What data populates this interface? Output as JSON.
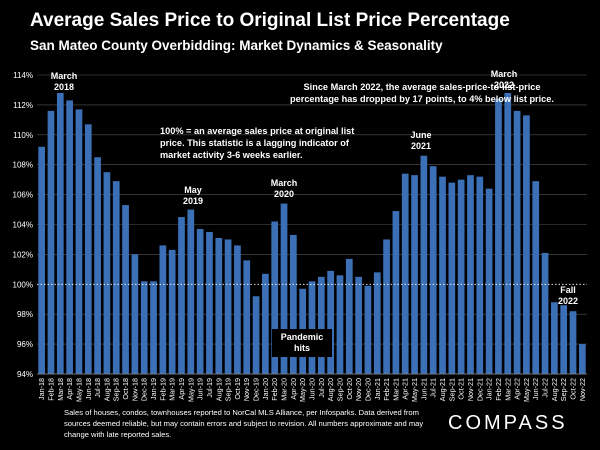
{
  "title": "Average Sales Price to Original List Price Percentage",
  "subtitle": "San Mateo County Overbidding: Market Dynamics & Seasonality",
  "footer": "Sales of houses, condos, townhouses reported to NorCal MLS Alliance, per Infosparks. Data derived from sources deemed reliable, but may contain errors and subject to revision. All numbers approximate and may change with late reported sales.",
  "logo": "COMPASS",
  "colors": {
    "background": "#000000",
    "bar": "#3b6fb6",
    "text": "#ffffff",
    "grid": "#555555",
    "reference_line": "#ffffff"
  },
  "chart_data": {
    "type": "bar",
    "ylim": [
      94,
      114
    ],
    "yticks": [
      "94%",
      "96%",
      "98%",
      "100%",
      "102%",
      "104%",
      "106%",
      "108%",
      "110%",
      "112%",
      "114%"
    ],
    "ytick_values": [
      94,
      96,
      98,
      100,
      102,
      104,
      106,
      108,
      110,
      112,
      114
    ],
    "reference_value": 100,
    "grid": true,
    "categories": [
      "Jan-18",
      "Feb-18",
      "Mar-18",
      "Apr-18",
      "May-18",
      "Jun-18",
      "Jul-18",
      "Aug-18",
      "Sep-18",
      "Oct-18",
      "Nov-18",
      "Dec-18",
      "Jan-19",
      "Feb-19",
      "Mar-19",
      "Apr-19",
      "May-19",
      "Jun-19",
      "Jul-19",
      "Aug-19",
      "Sep-19",
      "Oct-19",
      "Nov-19",
      "Dec-19",
      "Jan-20",
      "Feb-20",
      "Mar-20",
      "Apr-20",
      "May-20",
      "Jun-20",
      "Jul-20",
      "Aug-20",
      "Sep-20",
      "Oct-20",
      "Nov-20",
      "Dec-20",
      "Jan-21",
      "Feb-21",
      "Mar-21",
      "Apr-21",
      "May-21",
      "Jun-21",
      "Jul-21",
      "Aug-21",
      "Sep-21",
      "Oct-21",
      "Nov-21",
      "Dec-21",
      "Jan-22",
      "Feb-22",
      "Mar-22",
      "Apr-22",
      "May-22",
      "Jun-22",
      "Jul-22",
      "Aug-22",
      "Sep-22",
      "Oct-22",
      "Nov-22"
    ],
    "values": [
      109.2,
      111.6,
      112.8,
      112.3,
      111.7,
      110.7,
      108.5,
      107.5,
      106.9,
      105.3,
      102.0,
      100.2,
      100.2,
      102.6,
      102.3,
      104.5,
      105.0,
      103.7,
      103.5,
      103.1,
      103.0,
      102.6,
      101.6,
      99.2,
      100.7,
      104.2,
      105.4,
      103.3,
      99.7,
      100.2,
      100.5,
      100.9,
      100.6,
      101.7,
      100.5,
      99.9,
      100.8,
      103.0,
      104.9,
      107.4,
      107.3,
      108.6,
      107.9,
      107.2,
      106.8,
      107.0,
      107.3,
      107.2,
      106.4,
      112.4,
      112.8,
      111.6,
      111.3,
      106.9,
      102.1,
      98.8,
      98.6,
      98.2,
      96.0
    ],
    "annotations": [
      {
        "text": "March\n2018",
        "index": 2
      },
      {
        "text": "May\n2019",
        "index": 16
      },
      {
        "text": "March\n2020",
        "index": 26
      },
      {
        "text": "June\n2021",
        "index": 41
      },
      {
        "text": "March\n2022",
        "index": 50
      },
      {
        "text": "Fall\n2022",
        "index": 57
      },
      {
        "text": "Pandemic\nhits",
        "index": 28,
        "boxed": true
      }
    ],
    "notes": [
      "Since March 2022, the average sales-price-to-list-price\npercentage has dropped by 17 points, to 4% below list price.",
      "100% = an average sales price at original list\nprice. This statistic is a lagging indicator of\nmarket activity 3-6 weeks earlier."
    ]
  }
}
